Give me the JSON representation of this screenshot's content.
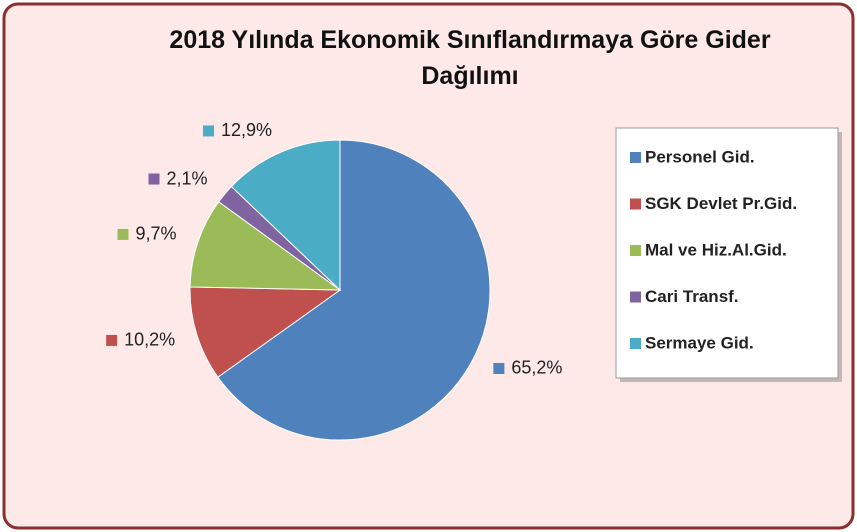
{
  "chart_data": {
    "type": "pie",
    "title": "2018 Yılında Ekonomik Sınıflandırmaya Göre Gider Dağılımı",
    "categories": [
      "Personel Gid.",
      "SGK Devlet Pr.Gid.",
      "Mal ve Hiz.Al.Gid.",
      "Cari Transf.",
      "Sermaye Gid."
    ],
    "values": [
      65.2,
      10.2,
      9.7,
      2.1,
      12.9
    ],
    "value_labels": [
      "65,2%",
      "10,2%",
      "9,7%",
      "2,1%",
      "12,9%"
    ],
    "colors": [
      "#4f81bd",
      "#c0504d",
      "#9bbb59",
      "#8064a2",
      "#4bacc6"
    ],
    "legend": "right"
  }
}
